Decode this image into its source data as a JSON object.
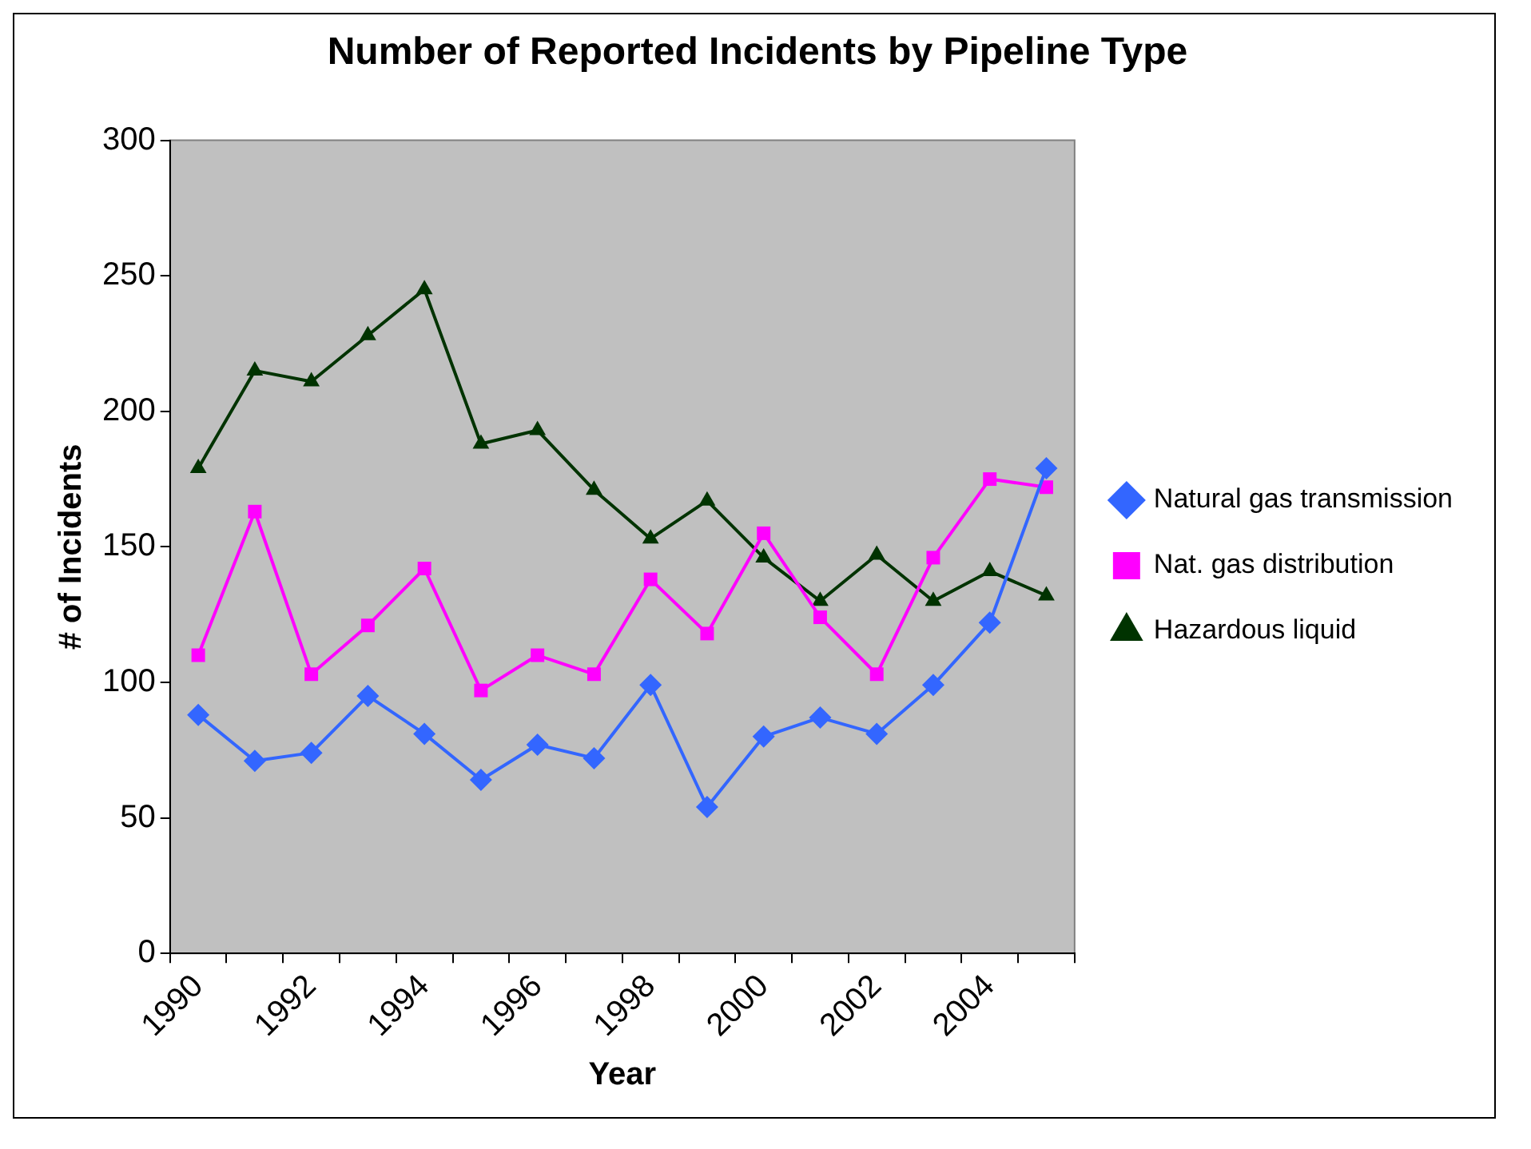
{
  "chart_data": {
    "type": "line",
    "title": "Number of Reported Incidents by Pipeline Type",
    "xlabel": "Year",
    "ylabel": "# of Incidents",
    "categories": [
      "1990",
      null,
      "1992",
      null,
      "1994",
      null,
      "1996",
      null,
      "1998",
      null,
      "2000",
      null,
      "2002",
      null,
      "2004",
      null
    ],
    "series": [
      {
        "name": "Natural gas transmission",
        "color": "#3366ff",
        "marker": "diamond",
        "values": [
          88,
          71,
          74,
          95,
          81,
          64,
          77,
          72,
          99,
          54,
          80,
          87,
          81,
          99,
          122,
          179
        ]
      },
      {
        "name": "Nat. gas distribution",
        "color": "#ff00ff",
        "marker": "square",
        "values": [
          110,
          163,
          103,
          121,
          142,
          97,
          110,
          103,
          138,
          118,
          155,
          124,
          103,
          146,
          175,
          172
        ]
      },
      {
        "name": "Hazardous liquid",
        "color": "#003300",
        "marker": "triangle",
        "values": [
          179,
          215,
          211,
          228,
          245,
          188,
          193,
          171,
          153,
          167,
          146,
          130,
          147,
          130,
          141,
          132
        ]
      }
    ],
    "ylim": [
      0,
      300
    ],
    "yticks": [
      0,
      50,
      100,
      150,
      200,
      250,
      300
    ],
    "grid": false,
    "legend": "right"
  }
}
